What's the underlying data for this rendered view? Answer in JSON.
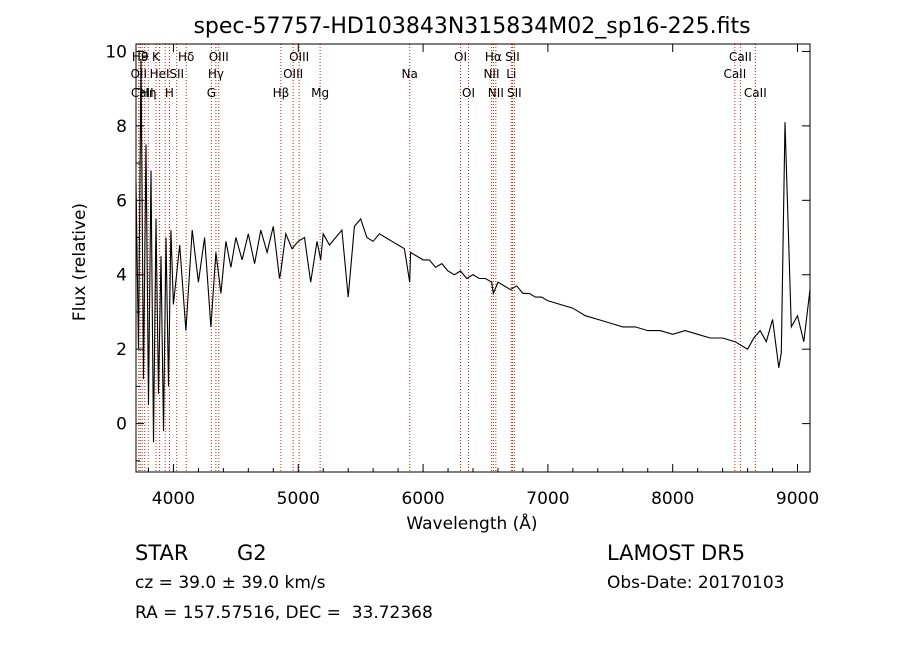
{
  "chart_data": {
    "type": "line",
    "title": "spec-57757-HD103843N315834M02_sp16-225.fits",
    "xlabel": "Wavelength (Å)",
    "ylabel": "Flux (relative)",
    "xlim": [
      3700,
      9100
    ],
    "ylim": [
      -1.3,
      10.2
    ],
    "xticks": [
      4000,
      5000,
      6000,
      7000,
      8000,
      9000
    ],
    "yticks": [
      0,
      2,
      4,
      6,
      8,
      10
    ],
    "grid": false,
    "line_color": "#000000",
    "marker_color": "#cc2200",
    "series": [
      {
        "x": [
          3700,
          3720,
          3740,
          3760,
          3780,
          3800,
          3820,
          3840,
          3860,
          3880,
          3900,
          3920,
          3940,
          3960,
          3980,
          4000,
          4050,
          4100,
          4150,
          4200,
          4250,
          4300,
          4340,
          4380,
          4420,
          4460,
          4500,
          4550,
          4600,
          4650,
          4700,
          4750,
          4800,
          4850,
          4861,
          4900,
          4950,
          5000,
          5050,
          5100,
          5150,
          5180,
          5200,
          5250,
          5300,
          5350,
          5400,
          5450,
          5500,
          5550,
          5600,
          5650,
          5700,
          5750,
          5800,
          5850,
          5893,
          5900,
          5950,
          6000,
          6050,
          6100,
          6150,
          6200,
          6250,
          6300,
          6350,
          6400,
          6450,
          6500,
          6550,
          6563,
          6600,
          6650,
          6700,
          6750,
          6800,
          6850,
          6900,
          6950,
          7000,
          7100,
          7200,
          7300,
          7400,
          7500,
          7600,
          7700,
          7800,
          7900,
          8000,
          8100,
          8200,
          8300,
          8400,
          8500,
          8550,
          8600,
          8650,
          8700,
          8750,
          8800,
          8850,
          8870,
          8900,
          8950,
          9000,
          9050,
          9100
        ],
        "y": [
          6.5,
          2.0,
          9.8,
          1.2,
          7.5,
          0.5,
          6.8,
          -0.5,
          5.5,
          0.8,
          4.5,
          -0.2,
          5.0,
          1.0,
          5.2,
          3.2,
          4.8,
          2.5,
          5.2,
          3.8,
          5.0,
          2.6,
          4.6,
          3.5,
          4.9,
          4.2,
          5.0,
          4.4,
          5.1,
          4.3,
          5.2,
          4.6,
          5.3,
          3.9,
          4.1,
          5.1,
          4.7,
          4.9,
          5.0,
          3.8,
          4.9,
          4.4,
          5.1,
          4.8,
          5.0,
          5.2,
          3.4,
          5.3,
          5.5,
          5.0,
          4.9,
          5.1,
          5.0,
          4.9,
          4.8,
          4.7,
          3.8,
          4.6,
          4.5,
          4.4,
          4.4,
          4.2,
          4.3,
          4.1,
          4.0,
          4.1,
          3.9,
          4.0,
          3.9,
          3.9,
          3.8,
          3.5,
          3.8,
          3.7,
          3.6,
          3.7,
          3.5,
          3.5,
          3.4,
          3.4,
          3.3,
          3.2,
          3.1,
          2.9,
          2.8,
          2.7,
          2.6,
          2.6,
          2.5,
          2.5,
          2.4,
          2.5,
          2.4,
          2.3,
          2.3,
          2.2,
          2.1,
          2.0,
          2.3,
          2.5,
          2.2,
          2.8,
          1.5,
          1.9,
          8.1,
          2.6,
          2.9,
          2.2,
          3.6
        ]
      }
    ],
    "line_markers": [
      {
        "x": 3722,
        "label": "OII",
        "row": 2
      },
      {
        "x": 3734,
        "label": "H9",
        "row": 1
      },
      {
        "x": 3750,
        "label": "CaII",
        "row": 3
      },
      {
        "x": 3770,
        "label": "θ",
        "row": 1
      },
      {
        "x": 3798,
        "label": "Hη",
        "row": 3
      },
      {
        "x": 3860,
        "label": "K",
        "row": 1
      },
      {
        "x": 3889,
        "label": "HeI",
        "row": 2
      },
      {
        "x": 3934,
        "label": "",
        "row": 0
      },
      {
        "x": 3968,
        "label": "H",
        "row": 3
      },
      {
        "x": 4026,
        "label": "SII",
        "row": 2
      },
      {
        "x": 4102,
        "label": "Hδ",
        "row": 1
      },
      {
        "x": 4304,
        "label": "G",
        "row": 3
      },
      {
        "x": 4340,
        "label": "Hγ",
        "row": 2
      },
      {
        "x": 4363,
        "label": "OIII",
        "row": 1
      },
      {
        "x": 4861,
        "label": "Hβ",
        "row": 3
      },
      {
        "x": 4959,
        "label": "OIII",
        "row": 2
      },
      {
        "x": 5007,
        "label": "OIII",
        "row": 1
      },
      {
        "x": 5175,
        "label": "Mg",
        "row": 3
      },
      {
        "x": 5893,
        "label": "Na",
        "row": 2
      },
      {
        "x": 6300,
        "label": "OI",
        "row": 1
      },
      {
        "x": 6364,
        "label": "OI",
        "row": 3
      },
      {
        "x": 6548,
        "label": "NII",
        "row": 2
      },
      {
        "x": 6563,
        "label": "Hα",
        "row": 1
      },
      {
        "x": 6583,
        "label": "NII",
        "row": 3
      },
      {
        "x": 6707,
        "label": "Li",
        "row": 2
      },
      {
        "x": 6716,
        "label": "SII",
        "row": 1
      },
      {
        "x": 6731,
        "label": "SII",
        "row": 3
      },
      {
        "x": 8498,
        "label": "CaII",
        "row": 2
      },
      {
        "x": 8542,
        "label": "CaII",
        "row": 1
      },
      {
        "x": 8662,
        "label": "CaII",
        "row": 3
      }
    ]
  },
  "info": {
    "class_label": "STAR",
    "subclass": "G2",
    "survey": "LAMOST DR5",
    "cz": "cz = 39.0 ± 39.0 km/s",
    "obs_date": "Obs-Date: 20170103",
    "coords": "RA = 157.57516, DEC =  33.72368"
  }
}
